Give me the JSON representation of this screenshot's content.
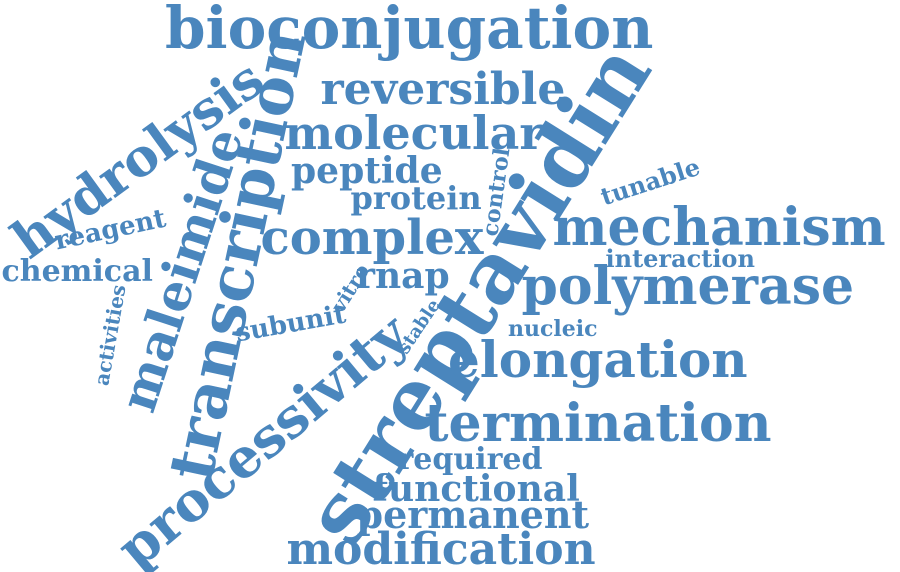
{
  "color": "#4a86bd",
  "words": [
    {
      "id": "bioconjugation",
      "text": "bioconjugation"
    },
    {
      "id": "reversible",
      "text": "reversible"
    },
    {
      "id": "molecular",
      "text": "molecular"
    },
    {
      "id": "peptide",
      "text": "peptide"
    },
    {
      "id": "protein",
      "text": "protein"
    },
    {
      "id": "control",
      "text": "control"
    },
    {
      "id": "complex",
      "text": "complex"
    },
    {
      "id": "hydrolysis",
      "text": "hydrolysis"
    },
    {
      "id": "reagent",
      "text": "reagent"
    },
    {
      "id": "chemical",
      "text": "chemical"
    },
    {
      "id": "maleimide",
      "text": "maleimide"
    },
    {
      "id": "transcription",
      "text": "transcription"
    },
    {
      "id": "activities",
      "text": "activities"
    },
    {
      "id": "streptavidin",
      "text": "streptavidin"
    },
    {
      "id": "tunable",
      "text": "tunable"
    },
    {
      "id": "mechanism",
      "text": "mechanism"
    },
    {
      "id": "interaction",
      "text": "interaction"
    },
    {
      "id": "polymerase",
      "text": "polymerase"
    },
    {
      "id": "rnap",
      "text": "rnap"
    },
    {
      "id": "vitro",
      "text": "vitro"
    },
    {
      "id": "subunit",
      "text": "subunit"
    },
    {
      "id": "stable",
      "text": "stable"
    },
    {
      "id": "nucleic",
      "text": "nucleic"
    },
    {
      "id": "elongation",
      "text": "elongation"
    },
    {
      "id": "processivity",
      "text": "processivity"
    },
    {
      "id": "termination",
      "text": "termination"
    },
    {
      "id": "required",
      "text": "required"
    },
    {
      "id": "functional",
      "text": "functional"
    },
    {
      "id": "permanent",
      "text": "permanent"
    },
    {
      "id": "modification",
      "text": "modification"
    }
  ]
}
